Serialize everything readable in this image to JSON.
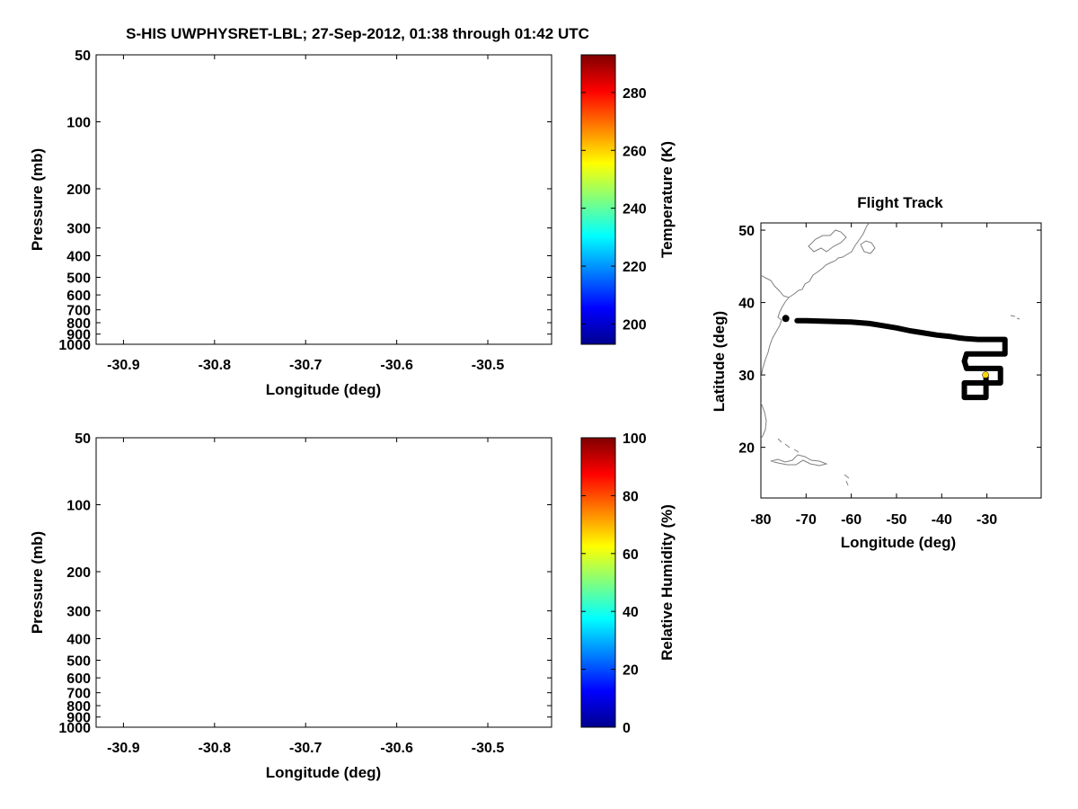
{
  "title": "S-HIS UWPHYSRET-LBL;   27-Sep-2012, 01:38 through 01:42 UTC",
  "colors": {
    "axes": "#000000",
    "background": "#ffffff",
    "coastline": "#808080",
    "track": "#000000",
    "start_marker": "#000000",
    "current_marker": "#ffd700"
  },
  "chart_data": [
    {
      "id": "temperature-panel",
      "type": "heatmap",
      "title": "",
      "xlabel": "Longitude (deg)",
      "ylabel": "Pressure (mb)",
      "xlim": [
        -30.93,
        -30.43
      ],
      "ylim": [
        1000,
        50
      ],
      "yscale": "log",
      "xticks": [
        -30.9,
        -30.8,
        -30.7,
        -30.6,
        -30.5
      ],
      "xtick_labels": [
        "-30.9",
        "-30.8",
        "-30.7",
        "-30.6",
        "-30.5"
      ],
      "yticks": [
        50,
        100,
        200,
        300,
        400,
        500,
        600,
        700,
        800,
        900,
        1000
      ],
      "ytick_labels": [
        "50",
        "100",
        "200",
        "300",
        "400",
        "500",
        "600",
        "700",
        "800",
        "900",
        "1000"
      ],
      "values": [],
      "colorbar": {
        "label": "Temperature (K)",
        "colormap": "jet",
        "range": [
          193,
          293
        ],
        "ticks": [
          200,
          220,
          240,
          260,
          280
        ],
        "tick_labels": [
          "200",
          "220",
          "240",
          "260",
          "280"
        ]
      }
    },
    {
      "id": "humidity-panel",
      "type": "heatmap",
      "title": "",
      "xlabel": "Longitude (deg)",
      "ylabel": "Pressure (mb)",
      "xlim": [
        -30.93,
        -30.43
      ],
      "ylim": [
        1000,
        50
      ],
      "yscale": "log",
      "xticks": [
        -30.9,
        -30.8,
        -30.7,
        -30.6,
        -30.5
      ],
      "xtick_labels": [
        "-30.9",
        "-30.8",
        "-30.7",
        "-30.6",
        "-30.5"
      ],
      "yticks": [
        50,
        100,
        200,
        300,
        400,
        500,
        600,
        700,
        800,
        900,
        1000
      ],
      "ytick_labels": [
        "50",
        "100",
        "200",
        "300",
        "400",
        "500",
        "600",
        "700",
        "800",
        "900",
        "1000"
      ],
      "values": [],
      "colorbar": {
        "label": "Relative Humidity (%)",
        "colormap": "jet",
        "range": [
          0,
          100
        ],
        "ticks": [
          0,
          20,
          40,
          60,
          80,
          100
        ],
        "tick_labels": [
          "0",
          "20",
          "40",
          "60",
          "80",
          "100"
        ]
      }
    },
    {
      "id": "flight-track-panel",
      "type": "line",
      "title": "Flight Track",
      "xlabel": "Longitude (deg)",
      "ylabel": "Latitude (deg)",
      "xlim": [
        -80,
        -18
      ],
      "ylim": [
        13,
        51
      ],
      "xticks": [
        -80,
        -70,
        -60,
        -50,
        -40,
        -30
      ],
      "xtick_labels": [
        "-80",
        "-70",
        "-60",
        "-50",
        "-40",
        "-30"
      ],
      "yticks": [
        20,
        30,
        40,
        50
      ],
      "ytick_labels": [
        "20",
        "30",
        "40",
        "50"
      ],
      "series": [
        {
          "x": [
            -72,
            -70,
            -65,
            -60,
            -56,
            -53,
            -50,
            -47,
            -44,
            -41,
            -38,
            -36,
            -34.5,
            -32,
            -31,
            -30.2,
            -26,
            -26,
            -30.2,
            -30.2,
            -34.5,
            -35,
            -34.5,
            -30.2,
            -27,
            -27,
            -30.2,
            -30.2,
            -35,
            -35,
            -30.2,
            -30.2
          ],
          "y": [
            37.5,
            37.5,
            37.4,
            37.3,
            37.1,
            36.8,
            36.5,
            36.1,
            35.8,
            35.5,
            35.3,
            35.1,
            35.0,
            34.9,
            34.9,
            34.9,
            34.9,
            32.9,
            32.9,
            32.9,
            32.9,
            31.9,
            30.9,
            30.9,
            30.9,
            28.9,
            28.9,
            28.9,
            28.9,
            26.9,
            26.9,
            30.0
          ]
        }
      ],
      "markers": [
        {
          "lon": -74.5,
          "lat": 37.8
        },
        {
          "lon": -30.3,
          "lat": 30.0
        }
      ]
    }
  ]
}
